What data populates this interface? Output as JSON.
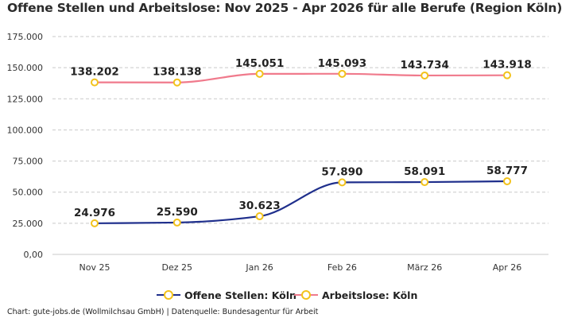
{
  "chart_data": {
    "type": "line",
    "title": "Offene Stellen und Arbeitslose: Nov 2025 - Apr 2026 für alle Berufe (Region Köln)",
    "categories": [
      "Nov 25",
      "Dez 25",
      "Jan 26",
      "Feb 26",
      "März 26",
      "Apr 26"
    ],
    "series": [
      {
        "name": "Offene Stellen: Köln",
        "values": [
          24976,
          25590,
          30623,
          57890,
          58091,
          58777
        ],
        "labels": [
          "24.976",
          "25.590",
          "30.623",
          "57.890",
          "58.091",
          "58.777"
        ],
        "color": "#1f2f8c"
      },
      {
        "name": "Arbeitslose: Köln",
        "values": [
          138202,
          138138,
          145051,
          145093,
          143734,
          143918
        ],
        "labels": [
          "138.202",
          "138.138",
          "145.051",
          "145.093",
          "143.734",
          "143.918"
        ],
        "color": "#f07a8c"
      }
    ],
    "marker_color": "#f2c21b",
    "ylim": [
      0,
      175000
    ],
    "yticks": [
      0,
      25000,
      50000,
      75000,
      100000,
      125000,
      150000,
      175000
    ],
    "ytick_labels": [
      "0,00",
      "25.000",
      "50.000",
      "75.000",
      "100.000",
      "125.000",
      "150.000",
      "175.000"
    ],
    "grid": true,
    "legend_position": "bottom-center",
    "xlabel": "",
    "ylabel": ""
  },
  "footer": "Chart: gute-jobs.de (Wollmilchsau GmbH) | Datenquelle: Bundesagentur für Arbeit"
}
